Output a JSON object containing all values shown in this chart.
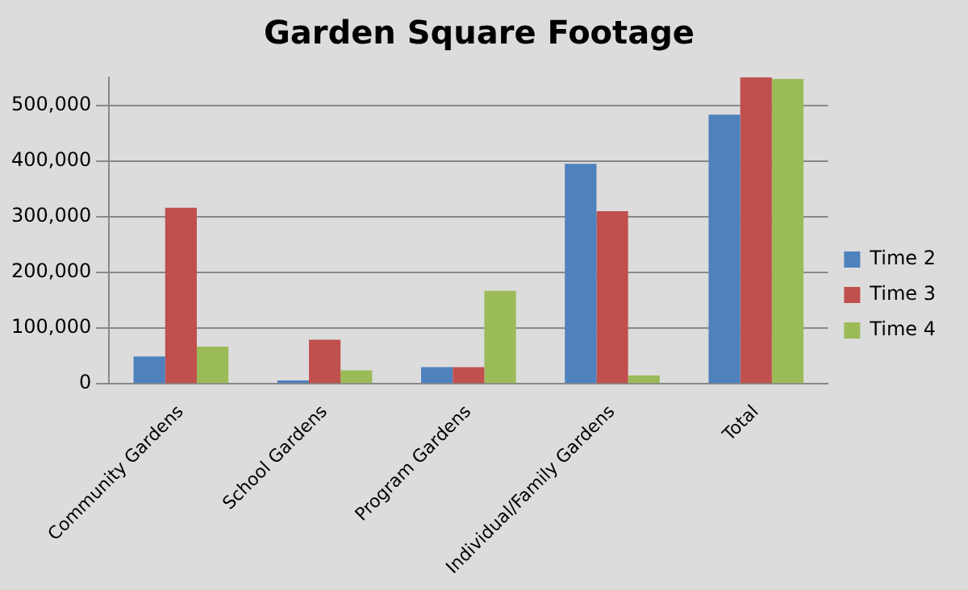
{
  "chart_data": {
    "type": "bar",
    "title": "Garden Square Footage",
    "categories": [
      "Community Gardens",
      "School Gardens",
      "Program Gardens",
      "Individual/Family Gardens",
      "Total"
    ],
    "series": [
      {
        "name": "Time 2",
        "color": "#4f81bd",
        "values": [
          49000,
          6000,
          30000,
          395000,
          483000
        ]
      },
      {
        "name": "Time 3",
        "color": "#c0504d",
        "values": [
          316000,
          79000,
          30000,
          310000,
          550000
        ]
      },
      {
        "name": "Time 4",
        "color": "#9bbb59",
        "values": [
          67000,
          24000,
          167000,
          15000,
          547000
        ]
      }
    ],
    "ylim": [
      0,
      550000
    ],
    "yticks": [
      0,
      {
        "value": 100000,
        "label": "100,000"
      },
      {
        "value": 200000,
        "label": "200,000"
      },
      {
        "value": 300000,
        "label": "300,000"
      },
      {
        "value": 400000,
        "label": "400,000"
      },
      {
        "value": 500000,
        "label": "500,000"
      }
    ],
    "grid": "y",
    "legend": "right"
  }
}
